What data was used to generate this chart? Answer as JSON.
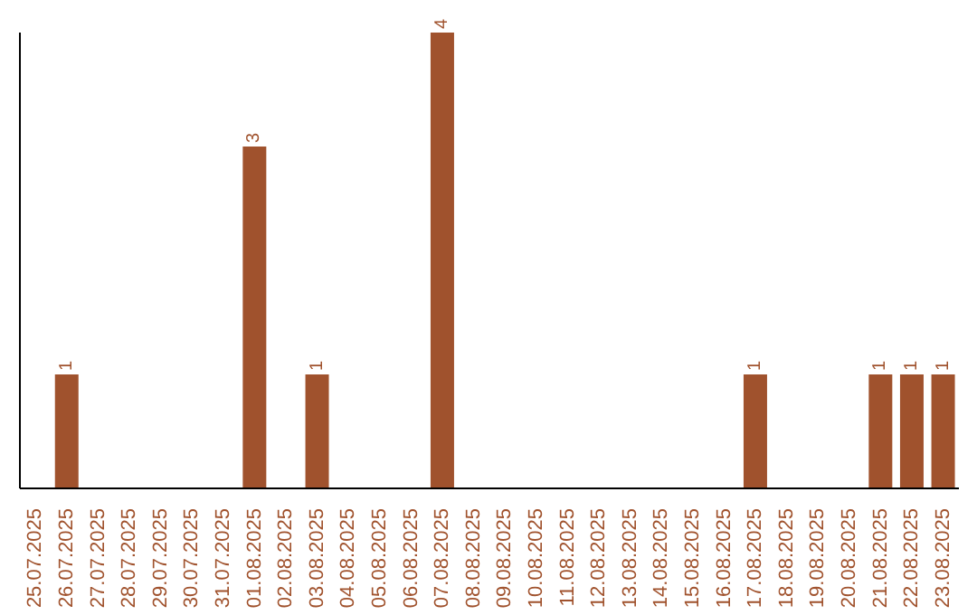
{
  "chart_data": {
    "type": "bar",
    "categories": [
      "25.07.2025",
      "26.07.2025",
      "27.07.2025",
      "28.07.2025",
      "29.07.2025",
      "30.07.2025",
      "31.07.2025",
      "01.08.2025",
      "02.08.2025",
      "03.08.2025",
      "04.08.2025",
      "05.08.2025",
      "06.08.2025",
      "07.08.2025",
      "08.08.2025",
      "09.08.2025",
      "10.08.2025",
      "11.08.2025",
      "12.08.2025",
      "13.08.2025",
      "14.08.2025",
      "15.08.2025",
      "16.08.2025",
      "17.08.2025",
      "18.08.2025",
      "19.08.2025",
      "20.08.2025",
      "21.08.2025",
      "22.08.2025",
      "23.08.2025"
    ],
    "values": [
      0,
      1,
      0,
      0,
      0,
      0,
      0,
      3,
      0,
      1,
      0,
      0,
      0,
      4,
      0,
      0,
      0,
      0,
      0,
      0,
      0,
      0,
      0,
      1,
      0,
      0,
      0,
      1,
      1,
      1
    ],
    "value_labels": [
      null,
      "1",
      null,
      null,
      null,
      null,
      null,
      "3",
      null,
      "1",
      null,
      null,
      null,
      "4",
      null,
      null,
      null,
      null,
      null,
      null,
      null,
      null,
      null,
      "1",
      null,
      null,
      null,
      "1",
      "1",
      "1"
    ],
    "color": "#a0522d"
  }
}
